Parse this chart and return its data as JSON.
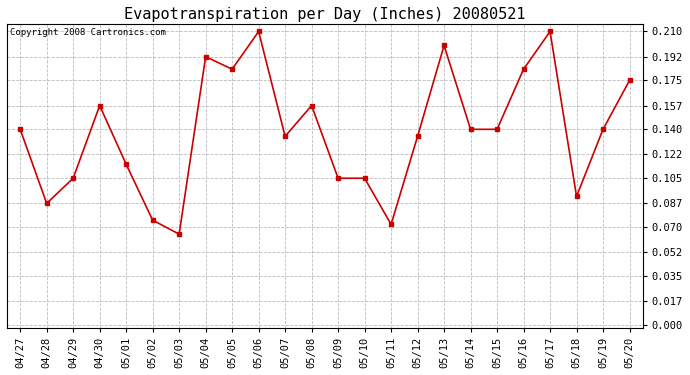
{
  "title": "Evapotranspiration per Day (Inches) 20080521",
  "copyright": "Copyright 2008 Cartronics.com",
  "x_labels": [
    "04/27",
    "04/28",
    "04/29",
    "04/30",
    "05/01",
    "05/02",
    "05/03",
    "05/04",
    "05/05",
    "05/06",
    "05/07",
    "05/08",
    "05/09",
    "05/10",
    "05/11",
    "05/12",
    "05/13",
    "05/14",
    "05/15",
    "05/16",
    "05/17",
    "05/18",
    "05/19",
    "05/20"
  ],
  "y_values": [
    0.14,
    0.087,
    0.105,
    0.157,
    0.115,
    0.075,
    0.065,
    0.192,
    0.183,
    0.21,
    0.135,
    0.157,
    0.105,
    0.105,
    0.072,
    0.135,
    0.2,
    0.14,
    0.14,
    0.183,
    0.21,
    0.092,
    0.14,
    0.175
  ],
  "y_ticks": [
    0.0,
    0.017,
    0.035,
    0.052,
    0.07,
    0.087,
    0.105,
    0.122,
    0.14,
    0.157,
    0.175,
    0.192,
    0.21
  ],
  "line_color": "#cc0000",
  "marker": "s",
  "marker_size": 3,
  "bg_color": "#ffffff",
  "plot_bg_color": "#ffffff",
  "grid_color": "#bbbbbb",
  "title_fontsize": 11,
  "copyright_fontsize": 6.5,
  "tick_fontsize": 7.5,
  "ylim_min": -0.002,
  "ylim_max": 0.215
}
